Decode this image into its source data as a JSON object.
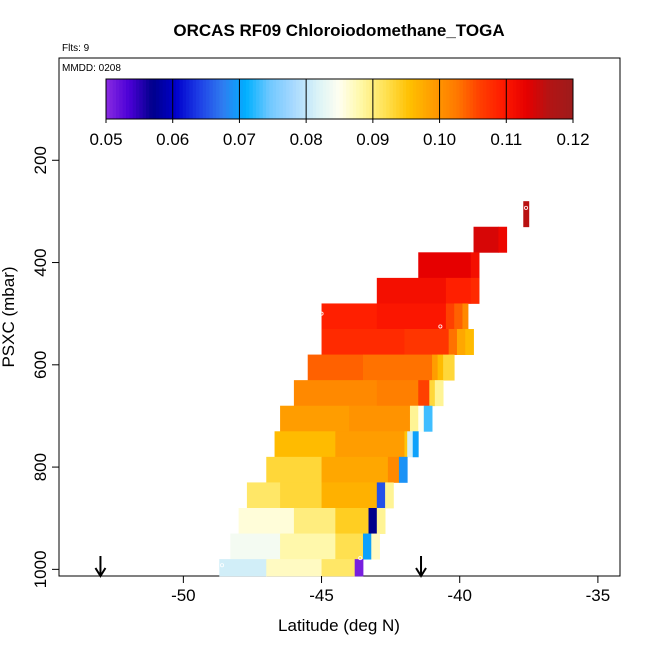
{
  "chart_data": {
    "type": "heatmap",
    "title": "ORCAS RF09 Chloroiodomethane_TOGA",
    "flights_label": "Flts: 9",
    "date_label": "MMDD: 0208",
    "xlabel": "Latitude (deg N)",
    "ylabel": "PSXC (mbar)",
    "xlim": [
      -54.5,
      -34.2
    ],
    "ylim": [
      1013,
      0
    ],
    "x_ticks": [
      -50,
      -45,
      -40,
      -35
    ],
    "x_tick_labels": [
      "-50",
      "-45",
      "-40",
      "-35"
    ],
    "y_ticks": [
      200,
      400,
      600,
      800,
      1000
    ],
    "y_tick_labels": [
      "200",
      "400",
      "600",
      "800",
      "1000"
    ],
    "colorbar": {
      "range": [
        0.05,
        0.12
      ],
      "ticks": [
        0.05,
        0.06,
        0.07,
        0.08,
        0.09,
        0.1,
        0.11,
        0.12
      ],
      "tick_labels": [
        "0.05",
        "0.06",
        "0.07",
        "0.08",
        "0.09",
        "0.10",
        "0.11",
        "0.12"
      ],
      "colors": [
        "#8a2be2",
        "#4b00d6",
        "#00008b",
        "#0000cd",
        "#1e40e6",
        "#2f7cf0",
        "#00b0ff",
        "#6fc8ff",
        "#a6d8ff",
        "#d8f2f7",
        "#fffff0",
        "#fff7a0",
        "#ffe050",
        "#ffc000",
        "#ff9d00",
        "#ff7a00",
        "#ff4000",
        "#ff1a00",
        "#e60000",
        "#b21414",
        "#9e1c1c"
      ]
    },
    "arrows": [
      -53.0,
      -41.4
    ],
    "rows": [
      {
        "y0": 280,
        "y1": 330,
        "cells": [
          [
            -37.7,
            -37.5,
            0.116
          ]
        ]
      },
      {
        "y0": 330,
        "y1": 380,
        "cells": [
          [
            -39.5,
            -38.6,
            0.114
          ],
          [
            -38.6,
            -38.3,
            0.112
          ]
        ]
      },
      {
        "y0": 380,
        "y1": 430,
        "cells": [
          [
            -41.5,
            -39.6,
            0.113
          ],
          [
            -39.6,
            -39.3,
            0.111
          ]
        ]
      },
      {
        "y0": 430,
        "y1": 480,
        "cells": [
          [
            -43.0,
            -40.5,
            0.111
          ],
          [
            -40.5,
            -39.6,
            0.109
          ],
          [
            -39.6,
            -39.3,
            0.108
          ]
        ]
      },
      {
        "y0": 480,
        "y1": 530,
        "cells": [
          [
            -45.0,
            -43.0,
            0.109
          ],
          [
            -43.0,
            -40.5,
            0.11
          ],
          [
            -40.5,
            -40.2,
            0.106
          ],
          [
            -40.2,
            -39.9,
            0.104
          ],
          [
            -39.9,
            -39.7,
            0.101
          ]
        ]
      },
      {
        "y0": 530,
        "y1": 580,
        "cells": [
          [
            -45.0,
            -42.0,
            0.108
          ],
          [
            -42.0,
            -40.4,
            0.107
          ],
          [
            -40.4,
            -40.1,
            0.103
          ],
          [
            -40.1,
            -39.8,
            0.098
          ],
          [
            -39.8,
            -39.5,
            0.096
          ]
        ]
      },
      {
        "y0": 580,
        "y1": 630,
        "cells": [
          [
            -45.5,
            -43.5,
            0.104
          ],
          [
            -43.5,
            -41.0,
            0.103
          ],
          [
            -41.0,
            -40.8,
            0.099
          ],
          [
            -40.8,
            -40.6,
            0.096
          ],
          [
            -40.6,
            -40.2,
            0.093
          ]
        ]
      },
      {
        "y0": 630,
        "y1": 680,
        "cells": [
          [
            -46.0,
            -43.0,
            0.101
          ],
          [
            -43.0,
            -41.5,
            0.102
          ],
          [
            -41.5,
            -41.1,
            0.106
          ],
          [
            -41.1,
            -40.9,
            0.093
          ],
          [
            -40.9,
            -40.6,
            0.089
          ]
        ]
      },
      {
        "y0": 680,
        "y1": 730,
        "cells": [
          [
            -46.5,
            -44.0,
            0.099
          ],
          [
            -44.0,
            -41.8,
            0.1
          ],
          [
            -41.8,
            -41.5,
            0.089
          ],
          [
            -41.5,
            -41.3,
            0.085
          ],
          [
            -41.3,
            -41.0,
            0.073
          ]
        ]
      },
      {
        "y0": 730,
        "y1": 780,
        "cells": [
          [
            -46.7,
            -44.5,
            0.096
          ],
          [
            -44.5,
            -42.0,
            0.099
          ],
          [
            -42.0,
            -41.9,
            0.095
          ],
          [
            -41.9,
            -41.7,
            0.081
          ],
          [
            -41.7,
            -41.5,
            0.07
          ]
        ]
      },
      {
        "y0": 780,
        "y1": 830,
        "cells": [
          [
            -47.0,
            -45.0,
            0.093
          ],
          [
            -45.0,
            -42.6,
            0.098
          ],
          [
            -42.6,
            -42.2,
            0.101
          ],
          [
            -42.2,
            -41.9,
            0.069
          ]
        ]
      },
      {
        "y0": 830,
        "y1": 880,
        "cells": [
          [
            -47.7,
            -46.5,
            0.091
          ],
          [
            -46.5,
            -45.0,
            0.093
          ],
          [
            -45.0,
            -43.0,
            0.097
          ],
          [
            -43.0,
            -42.7,
            0.065
          ],
          [
            -42.7,
            -42.4,
            0.089
          ]
        ]
      },
      {
        "y0": 880,
        "y1": 930,
        "cells": [
          [
            -48.0,
            -46.0,
            0.086
          ],
          [
            -46.0,
            -44.5,
            0.09
          ],
          [
            -44.5,
            -43.3,
            0.094
          ],
          [
            -43.3,
            -43.0,
            0.057
          ],
          [
            -43.0,
            -42.7,
            0.089
          ]
        ]
      },
      {
        "y0": 930,
        "y1": 980,
        "cells": [
          [
            -48.3,
            -46.5,
            0.084
          ],
          [
            -46.5,
            -44.5,
            0.088
          ],
          [
            -44.5,
            -43.5,
            0.092
          ],
          [
            -43.5,
            -43.2,
            0.07
          ],
          [
            -43.2,
            -42.9,
            0.087
          ]
        ]
      },
      {
        "y0": 980,
        "y1": 1013,
        "cells": [
          [
            -48.7,
            -47.0,
            0.081
          ],
          [
            -47.0,
            -45.0,
            0.087
          ],
          [
            -45.0,
            -43.8,
            0.091
          ],
          [
            -43.8,
            -43.5,
            0.051
          ]
        ]
      }
    ],
    "sample_markers": [
      {
        "lat": -37.6,
        "p": 293
      },
      {
        "lat": -45.0,
        "p": 500
      },
      {
        "lat": -40.7,
        "p": 525
      },
      {
        "lat": -48.6,
        "p": 992
      },
      {
        "lat": -43.6,
        "p": 978
      }
    ]
  }
}
